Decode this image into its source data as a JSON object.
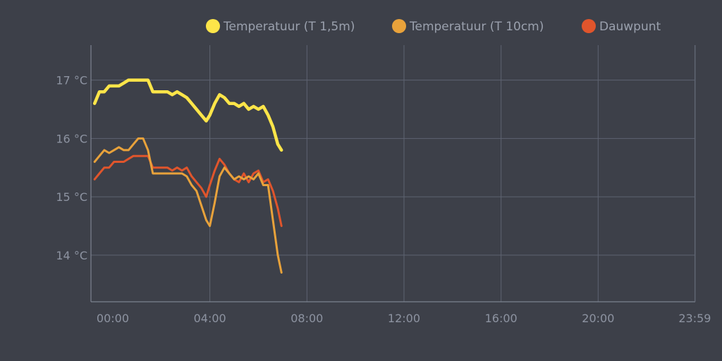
{
  "chart_data": {
    "type": "line",
    "title": "",
    "xlabel": "",
    "ylabel": "",
    "x_unit": "hours",
    "xlim": [
      -0.9,
      24
    ],
    "ylim": [
      13.2,
      17.6
    ],
    "x_ticks": [
      {
        "value": 0,
        "label": "00:00"
      },
      {
        "value": 4,
        "label": "04:00"
      },
      {
        "value": 8,
        "label": "08:00"
      },
      {
        "value": 12,
        "label": "12:00"
      },
      {
        "value": 16,
        "label": "16:00"
      },
      {
        "value": 20,
        "label": "20:00"
      },
      {
        "value": 23.983,
        "label": "23:59"
      }
    ],
    "y_ticks": [
      {
        "value": 14,
        "label": "14 °C"
      },
      {
        "value": 15,
        "label": "15 °C"
      },
      {
        "value": 16,
        "label": "16 °C"
      },
      {
        "value": 17,
        "label": "17 °C"
      }
    ],
    "grid": true,
    "legend_position": "top-right",
    "background_color": "#3d4049",
    "series": [
      {
        "name": "Temperatuur (T 1,5m)",
        "color": "#fde549",
        "x": [
          -0.75,
          -0.55,
          -0.35,
          -0.15,
          0.05,
          0.25,
          0.45,
          0.65,
          0.85,
          1.05,
          1.25,
          1.45,
          1.65,
          1.85,
          2.05,
          2.25,
          2.45,
          2.65,
          2.85,
          3.05,
          3.25,
          3.45,
          3.65,
          3.85,
          4.0,
          4.2,
          4.4,
          4.6,
          4.8,
          5.0,
          5.2,
          5.4,
          5.6,
          5.8,
          6.0,
          6.2,
          6.4,
          6.6,
          6.8,
          6.95
        ],
        "y": [
          16.6,
          16.8,
          16.8,
          16.9,
          16.9,
          16.9,
          16.95,
          17.0,
          17.0,
          17.0,
          17.0,
          17.0,
          16.8,
          16.8,
          16.8,
          16.8,
          16.75,
          16.8,
          16.75,
          16.7,
          16.6,
          16.5,
          16.4,
          16.3,
          16.4,
          16.6,
          16.75,
          16.7,
          16.6,
          16.6,
          16.55,
          16.6,
          16.5,
          16.55,
          16.5,
          16.55,
          16.4,
          16.2,
          15.9,
          15.8
        ]
      },
      {
        "name": "Temperatuur (T 10cm)",
        "color": "#e8a23b",
        "x": [
          -0.75,
          -0.55,
          -0.35,
          -0.15,
          0.05,
          0.25,
          0.45,
          0.65,
          0.85,
          1.05,
          1.25,
          1.45,
          1.65,
          1.85,
          2.05,
          2.25,
          2.45,
          2.65,
          2.85,
          3.05,
          3.25,
          3.45,
          3.65,
          3.85,
          4.0,
          4.2,
          4.4,
          4.6,
          4.8,
          5.0,
          5.2,
          5.4,
          5.6,
          5.8,
          6.0,
          6.2,
          6.4,
          6.6,
          6.8,
          6.95
        ],
        "y": [
          15.6,
          15.7,
          15.8,
          15.75,
          15.8,
          15.85,
          15.8,
          15.8,
          15.9,
          16.0,
          16.0,
          15.8,
          15.4,
          15.4,
          15.4,
          15.4,
          15.4,
          15.4,
          15.4,
          15.35,
          15.2,
          15.1,
          14.85,
          14.6,
          14.5,
          14.9,
          15.35,
          15.5,
          15.4,
          15.3,
          15.35,
          15.3,
          15.35,
          15.3,
          15.4,
          15.2,
          15.2,
          14.6,
          14.0,
          13.7
        ]
      },
      {
        "name": "Dauwpunt",
        "color": "#e0552c",
        "x": [
          -0.75,
          -0.55,
          -0.35,
          -0.15,
          0.05,
          0.25,
          0.45,
          0.65,
          0.85,
          1.05,
          1.25,
          1.45,
          1.65,
          1.85,
          2.05,
          2.25,
          2.45,
          2.65,
          2.85,
          3.05,
          3.25,
          3.45,
          3.65,
          3.85,
          4.0,
          4.2,
          4.4,
          4.6,
          4.8,
          5.0,
          5.2,
          5.4,
          5.6,
          5.8,
          6.0,
          6.2,
          6.4,
          6.6,
          6.8,
          6.95
        ],
        "y": [
          15.3,
          15.4,
          15.5,
          15.5,
          15.6,
          15.6,
          15.6,
          15.65,
          15.7,
          15.7,
          15.7,
          15.7,
          15.5,
          15.5,
          15.5,
          15.5,
          15.45,
          15.5,
          15.45,
          15.5,
          15.35,
          15.25,
          15.15,
          15.0,
          15.2,
          15.45,
          15.65,
          15.55,
          15.4,
          15.3,
          15.25,
          15.4,
          15.25,
          15.4,
          15.45,
          15.25,
          15.3,
          15.1,
          14.8,
          14.5
        ]
      }
    ]
  }
}
